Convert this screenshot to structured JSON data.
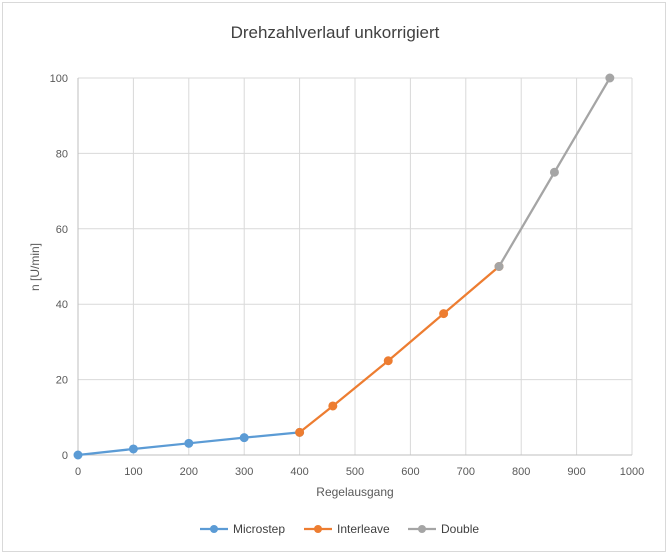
{
  "chart_data": {
    "type": "line",
    "title": "Drehzahlverlauf unkorrigiert",
    "xlabel": "Regelausgang",
    "ylabel": "n [U/min]",
    "xlim": [
      0,
      1000
    ],
    "ylim": [
      0,
      100
    ],
    "x_ticks": [
      0,
      100,
      200,
      300,
      400,
      500,
      600,
      700,
      800,
      900,
      1000
    ],
    "y_ticks": [
      0,
      20,
      40,
      60,
      80,
      100
    ],
    "grid": true,
    "legend_position": "bottom",
    "series": [
      {
        "name": "Microstep",
        "color": "#5b9bd5",
        "points": [
          [
            0,
            0
          ],
          [
            100,
            1.6
          ],
          [
            200,
            3.1
          ],
          [
            300,
            4.6
          ],
          [
            400,
            6.0
          ]
        ]
      },
      {
        "name": "Interleave",
        "color": "#ed7d31",
        "points": [
          [
            400,
            6.0
          ],
          [
            460,
            13.0
          ],
          [
            560,
            25.0
          ],
          [
            660,
            37.5
          ],
          [
            760,
            50.0
          ]
        ]
      },
      {
        "name": "Double",
        "color": "#a5a5a5",
        "points": [
          [
            760,
            50.0
          ],
          [
            860,
            75.0
          ],
          [
            960,
            100.0
          ]
        ]
      }
    ]
  }
}
